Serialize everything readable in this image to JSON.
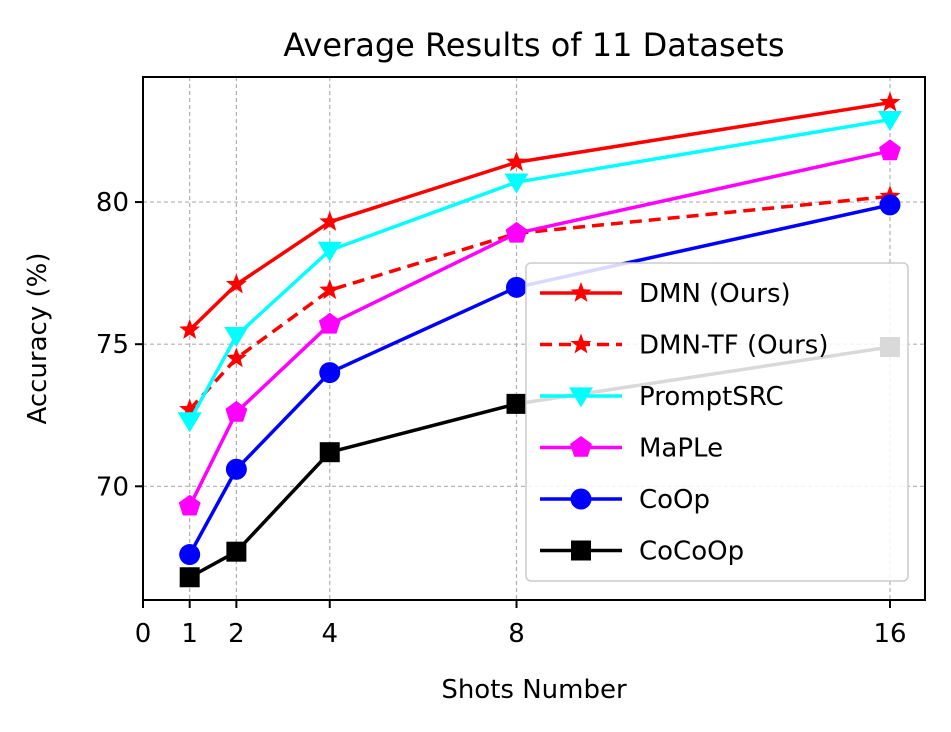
{
  "chart_data": {
    "type": "line",
    "title": "Average Results of 11 Datasets",
    "xlabel": "Shots Number",
    "ylabel": "Accuracy (%)",
    "xlim": [
      0,
      16.75
    ],
    "ylim": [
      66.0,
      84.4
    ],
    "xticks": [
      0,
      1,
      2,
      4,
      8,
      16
    ],
    "yticks": [
      70,
      75,
      80
    ],
    "grid": true,
    "legend_position": "lower-right",
    "x": [
      1,
      2,
      4,
      8,
      16
    ],
    "series": [
      {
        "name": "DMN (Ours)",
        "color": "#ff0000",
        "marker": "star",
        "dash": "solid",
        "values": [
          75.5,
          77.1,
          79.3,
          81.4,
          83.5
        ]
      },
      {
        "name": "DMN-TF (Ours)",
        "color": "#ff0000",
        "marker": "star",
        "dash": "dashed",
        "values": [
          72.7,
          74.5,
          76.9,
          78.9,
          80.2
        ]
      },
      {
        "name": "PromptSRC",
        "color": "#00ffff",
        "marker": "triangle-down",
        "dash": "solid",
        "values": [
          72.3,
          75.3,
          78.3,
          80.7,
          82.9
        ]
      },
      {
        "name": "MaPLe",
        "color": "#ff00ff",
        "marker": "pentagon",
        "dash": "solid",
        "values": [
          69.3,
          72.6,
          75.7,
          78.9,
          81.8
        ]
      },
      {
        "name": "CoOp",
        "color": "#0000ff",
        "marker": "circle",
        "dash": "solid",
        "values": [
          67.6,
          70.6,
          74.0,
          77.0,
          79.9
        ]
      },
      {
        "name": "CoCoOp",
        "color": "#000000",
        "marker": "square",
        "dash": "solid",
        "values": [
          66.8,
          67.7,
          71.2,
          72.9,
          74.9
        ]
      }
    ]
  }
}
